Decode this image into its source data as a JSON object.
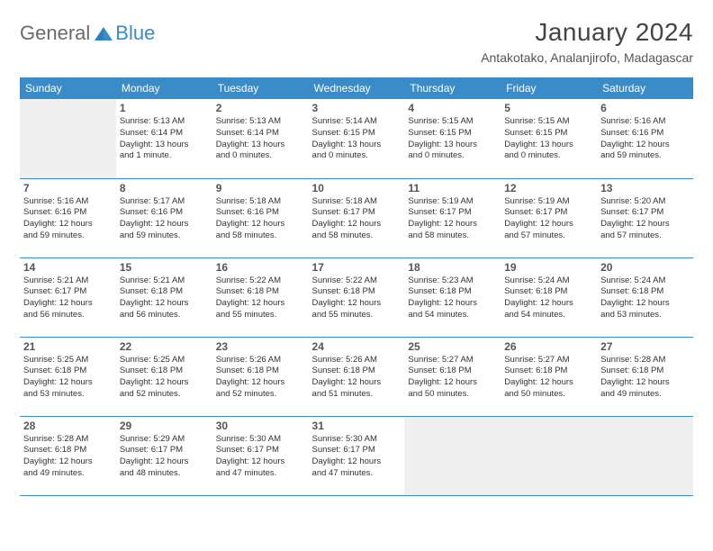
{
  "brand": {
    "word1": "General",
    "word2": "Blue"
  },
  "title": "January 2024",
  "location": "Antakotako, Analanjirofo, Madagascar",
  "colors": {
    "header_bg": "#3a8cc8",
    "header_text": "#ffffff",
    "border": "#3a8cc8",
    "empty_bg": "#f0f0f0",
    "text": "#333333",
    "title_text": "#444444",
    "logo_gray": "#6a6a6a",
    "logo_blue": "#3a8cc8"
  },
  "weekdays": [
    "Sunday",
    "Monday",
    "Tuesday",
    "Wednesday",
    "Thursday",
    "Friday",
    "Saturday"
  ],
  "weeks": [
    [
      null,
      {
        "n": "1",
        "sr": "5:13 AM",
        "ss": "6:14 PM",
        "dh": "13",
        "dm": "1 minute"
      },
      {
        "n": "2",
        "sr": "5:13 AM",
        "ss": "6:14 PM",
        "dh": "13",
        "dm": "0 minutes"
      },
      {
        "n": "3",
        "sr": "5:14 AM",
        "ss": "6:15 PM",
        "dh": "13",
        "dm": "0 minutes"
      },
      {
        "n": "4",
        "sr": "5:15 AM",
        "ss": "6:15 PM",
        "dh": "13",
        "dm": "0 minutes"
      },
      {
        "n": "5",
        "sr": "5:15 AM",
        "ss": "6:15 PM",
        "dh": "13",
        "dm": "0 minutes"
      },
      {
        "n": "6",
        "sr": "5:16 AM",
        "ss": "6:16 PM",
        "dh": "12",
        "dm": "59 minutes"
      }
    ],
    [
      {
        "n": "7",
        "sr": "5:16 AM",
        "ss": "6:16 PM",
        "dh": "12",
        "dm": "59 minutes"
      },
      {
        "n": "8",
        "sr": "5:17 AM",
        "ss": "6:16 PM",
        "dh": "12",
        "dm": "59 minutes"
      },
      {
        "n": "9",
        "sr": "5:18 AM",
        "ss": "6:16 PM",
        "dh": "12",
        "dm": "58 minutes"
      },
      {
        "n": "10",
        "sr": "5:18 AM",
        "ss": "6:17 PM",
        "dh": "12",
        "dm": "58 minutes"
      },
      {
        "n": "11",
        "sr": "5:19 AM",
        "ss": "6:17 PM",
        "dh": "12",
        "dm": "58 minutes"
      },
      {
        "n": "12",
        "sr": "5:19 AM",
        "ss": "6:17 PM",
        "dh": "12",
        "dm": "57 minutes"
      },
      {
        "n": "13",
        "sr": "5:20 AM",
        "ss": "6:17 PM",
        "dh": "12",
        "dm": "57 minutes"
      }
    ],
    [
      {
        "n": "14",
        "sr": "5:21 AM",
        "ss": "6:17 PM",
        "dh": "12",
        "dm": "56 minutes"
      },
      {
        "n": "15",
        "sr": "5:21 AM",
        "ss": "6:18 PM",
        "dh": "12",
        "dm": "56 minutes"
      },
      {
        "n": "16",
        "sr": "5:22 AM",
        "ss": "6:18 PM",
        "dh": "12",
        "dm": "55 minutes"
      },
      {
        "n": "17",
        "sr": "5:22 AM",
        "ss": "6:18 PM",
        "dh": "12",
        "dm": "55 minutes"
      },
      {
        "n": "18",
        "sr": "5:23 AM",
        "ss": "6:18 PM",
        "dh": "12",
        "dm": "54 minutes"
      },
      {
        "n": "19",
        "sr": "5:24 AM",
        "ss": "6:18 PM",
        "dh": "12",
        "dm": "54 minutes"
      },
      {
        "n": "20",
        "sr": "5:24 AM",
        "ss": "6:18 PM",
        "dh": "12",
        "dm": "53 minutes"
      }
    ],
    [
      {
        "n": "21",
        "sr": "5:25 AM",
        "ss": "6:18 PM",
        "dh": "12",
        "dm": "53 minutes"
      },
      {
        "n": "22",
        "sr": "5:25 AM",
        "ss": "6:18 PM",
        "dh": "12",
        "dm": "52 minutes"
      },
      {
        "n": "23",
        "sr": "5:26 AM",
        "ss": "6:18 PM",
        "dh": "12",
        "dm": "52 minutes"
      },
      {
        "n": "24",
        "sr": "5:26 AM",
        "ss": "6:18 PM",
        "dh": "12",
        "dm": "51 minutes"
      },
      {
        "n": "25",
        "sr": "5:27 AM",
        "ss": "6:18 PM",
        "dh": "12",
        "dm": "50 minutes"
      },
      {
        "n": "26",
        "sr": "5:27 AM",
        "ss": "6:18 PM",
        "dh": "12",
        "dm": "50 minutes"
      },
      {
        "n": "27",
        "sr": "5:28 AM",
        "ss": "6:18 PM",
        "dh": "12",
        "dm": "49 minutes"
      }
    ],
    [
      {
        "n": "28",
        "sr": "5:28 AM",
        "ss": "6:18 PM",
        "dh": "12",
        "dm": "49 minutes"
      },
      {
        "n": "29",
        "sr": "5:29 AM",
        "ss": "6:17 PM",
        "dh": "12",
        "dm": "48 minutes"
      },
      {
        "n": "30",
        "sr": "5:30 AM",
        "ss": "6:17 PM",
        "dh": "12",
        "dm": "47 minutes"
      },
      {
        "n": "31",
        "sr": "5:30 AM",
        "ss": "6:17 PM",
        "dh": "12",
        "dm": "47 minutes"
      },
      null,
      null,
      null
    ]
  ]
}
